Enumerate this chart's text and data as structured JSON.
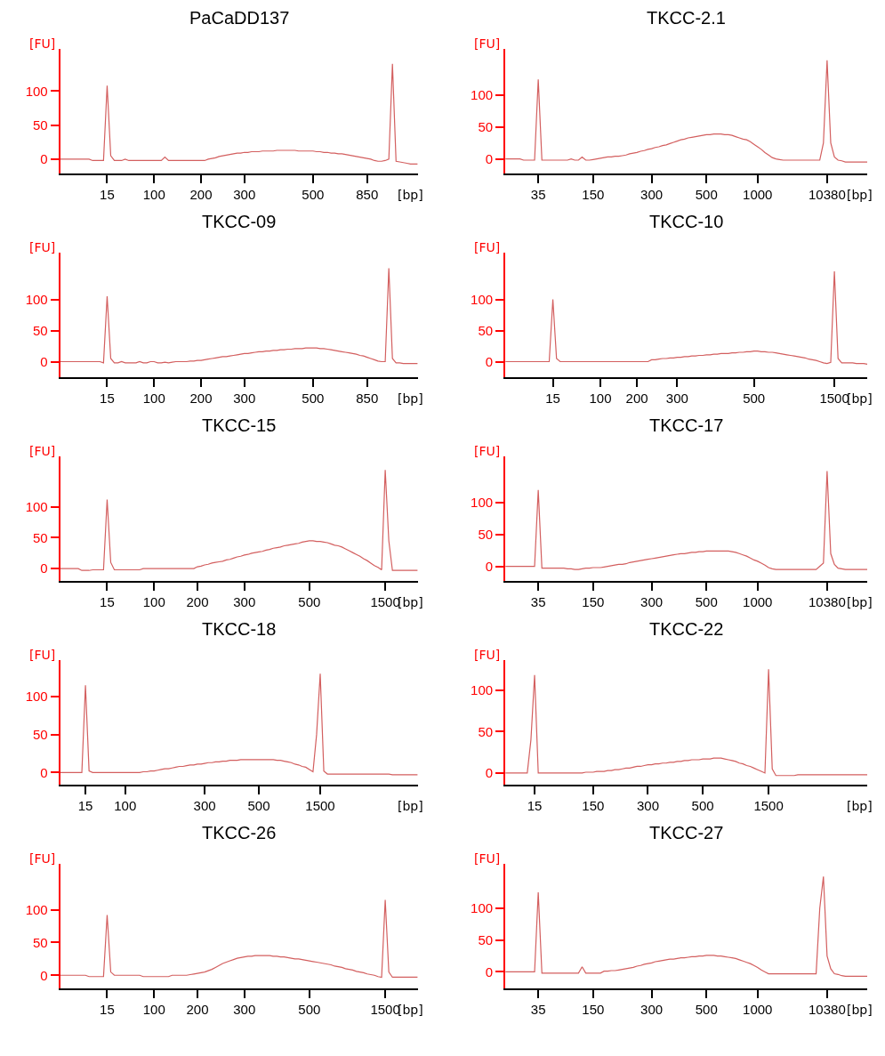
{
  "chart_data": [
    {
      "type": "line",
      "title": "PaCaDD137",
      "xlabel": "[bp]",
      "ylabel": "[FU]",
      "color": "#d35f5f",
      "marker": "none",
      "ylim": [
        -21,
        162
      ],
      "yticks": [
        0,
        50,
        100
      ],
      "categories": [
        null,
        null,
        null,
        null,
        null,
        null,
        null,
        null,
        null,
        null,
        null,
        null,
        null,
        "15",
        null,
        null,
        null,
        null,
        null,
        null,
        null,
        null,
        null,
        null,
        null,
        null,
        "100",
        null,
        null,
        null,
        null,
        null,
        null,
        null,
        null,
        null,
        null,
        null,
        null,
        "200",
        null,
        null,
        null,
        null,
        null,
        null,
        null,
        null,
        null,
        null,
        null,
        "300",
        null,
        null,
        null,
        null,
        null,
        null,
        null,
        null,
        null,
        null,
        null,
        null,
        null,
        null,
        null,
        null,
        null,
        null,
        "500",
        null,
        null,
        null,
        null,
        null,
        null,
        null,
        null,
        null,
        null,
        null,
        null,
        null,
        null,
        "850",
        null,
        null,
        null,
        null,
        null,
        null,
        null,
        null,
        null,
        null,
        null,
        null,
        null,
        null
      ],
      "values": [
        0,
        0,
        0,
        0,
        0,
        0,
        0,
        0,
        0,
        -2,
        -2,
        -2,
        -2,
        108,
        5,
        -2,
        -2,
        -2,
        0,
        -2,
        -2,
        -2,
        -2,
        -2,
        -2,
        -2,
        -2,
        -2,
        -2,
        3,
        -2,
        -2,
        -2,
        -2,
        -2,
        -2,
        -2,
        -2,
        -2,
        -2,
        -2,
        0,
        1,
        2,
        4,
        5,
        6,
        7,
        8,
        9,
        9,
        10,
        10,
        11,
        11,
        11,
        12,
        12,
        12,
        12,
        13,
        13,
        13,
        13,
        13,
        13,
        12,
        12,
        12,
        12,
        12,
        11,
        11,
        10,
        10,
        9,
        9,
        8,
        8,
        7,
        6,
        5,
        4,
        3,
        2,
        1,
        0,
        -2,
        -3,
        -3,
        -2,
        0,
        140,
        -3,
        -4,
        -5,
        -6,
        -7,
        -7,
        -7
      ]
    },
    {
      "type": "line",
      "title": "TKCC-2.1",
      "xlabel": "[bp]",
      "ylabel": "[FU]",
      "color": "#d35f5f",
      "marker": "none",
      "ylim": [
        -23,
        173
      ],
      "yticks": [
        0,
        50,
        100
      ],
      "categories": [
        null,
        null,
        null,
        null,
        null,
        null,
        null,
        null,
        null,
        "35",
        null,
        null,
        null,
        null,
        null,
        null,
        null,
        null,
        null,
        null,
        null,
        null,
        null,
        null,
        "150",
        null,
        null,
        null,
        null,
        null,
        null,
        null,
        null,
        null,
        null,
        null,
        null,
        null,
        null,
        null,
        "300",
        null,
        null,
        null,
        null,
        null,
        null,
        null,
        null,
        null,
        null,
        null,
        null,
        null,
        null,
        "500",
        null,
        null,
        null,
        null,
        null,
        null,
        null,
        null,
        null,
        null,
        null,
        null,
        null,
        "1000",
        null,
        null,
        null,
        null,
        null,
        null,
        null,
        null,
        null,
        null,
        null,
        null,
        null,
        null,
        null,
        null,
        null,
        null,
        "10380",
        null,
        null,
        null,
        null,
        null,
        null,
        null,
        null,
        null,
        null,
        null
      ],
      "values": [
        0,
        0,
        0,
        0,
        0,
        -2,
        -2,
        -2,
        -2,
        125,
        -2,
        -2,
        -2,
        -2,
        -2,
        -2,
        -2,
        -2,
        0,
        -2,
        -2,
        3,
        -2,
        -2,
        -1,
        0,
        1,
        2,
        3,
        3,
        4,
        4,
        5,
        6,
        8,
        9,
        10,
        12,
        13,
        15,
        16,
        18,
        19,
        21,
        22,
        24,
        26,
        28,
        30,
        31,
        33,
        34,
        35,
        36,
        37,
        38,
        38,
        39,
        39,
        39,
        38,
        38,
        37,
        35,
        33,
        31,
        30,
        27,
        23,
        19,
        15,
        10,
        6,
        2,
        0,
        -1,
        -2,
        -2,
        -2,
        -2,
        -2,
        -2,
        -2,
        -2,
        -2,
        -2,
        -2,
        25,
        155,
        25,
        3,
        -2,
        -3,
        -5,
        -5,
        -5,
        -5,
        -5,
        -5,
        -5
      ]
    },
    {
      "type": "line",
      "title": "TKCC-09",
      "xlabel": "[bp]",
      "ylabel": "[FU]",
      "color": "#d35f5f",
      "marker": "none",
      "ylim": [
        -25,
        175
      ],
      "yticks": [
        0,
        50,
        100
      ],
      "categories": [
        null,
        null,
        null,
        null,
        null,
        null,
        null,
        null,
        null,
        null,
        null,
        null,
        null,
        "15",
        null,
        null,
        null,
        null,
        null,
        null,
        null,
        null,
        null,
        null,
        null,
        null,
        "100",
        null,
        null,
        null,
        null,
        null,
        null,
        null,
        null,
        null,
        null,
        null,
        null,
        "200",
        null,
        null,
        null,
        null,
        null,
        null,
        null,
        null,
        null,
        null,
        null,
        "300",
        null,
        null,
        null,
        null,
        null,
        null,
        null,
        null,
        null,
        null,
        null,
        null,
        null,
        null,
        null,
        null,
        null,
        null,
        "500",
        null,
        null,
        null,
        null,
        null,
        null,
        null,
        null,
        null,
        null,
        null,
        null,
        null,
        null,
        "850",
        null,
        null,
        null,
        null,
        null,
        null,
        null,
        null,
        null,
        null,
        null,
        null,
        null,
        null
      ],
      "values": [
        0,
        0,
        0,
        0,
        0,
        0,
        0,
        0,
        0,
        0,
        0,
        0,
        -2,
        105,
        5,
        -2,
        -2,
        0,
        -2,
        -2,
        -2,
        -2,
        0,
        -2,
        -2,
        0,
        0,
        -2,
        -2,
        -1,
        -2,
        -1,
        0,
        0,
        0,
        0,
        1,
        1,
        2,
        2,
        3,
        4,
        5,
        6,
        7,
        8,
        8,
        9,
        10,
        11,
        12,
        13,
        13,
        14,
        15,
        16,
        16,
        17,
        17,
        18,
        18,
        19,
        19,
        20,
        20,
        21,
        21,
        21,
        22,
        22,
        22,
        22,
        21,
        21,
        20,
        19,
        18,
        17,
        16,
        15,
        14,
        13,
        12,
        10,
        9,
        7,
        5,
        3,
        1,
        0,
        0,
        150,
        5,
        -2,
        -2,
        -3,
        -3,
        -3,
        -3,
        -3
      ]
    },
    {
      "type": "line",
      "title": "TKCC-10",
      "xlabel": "[bp]",
      "ylabel": "[FU]",
      "color": "#d35f5f",
      "marker": "none",
      "ylim": [
        -25,
        175
      ],
      "yticks": [
        0,
        50,
        100
      ],
      "categories": [
        null,
        null,
        null,
        null,
        null,
        null,
        null,
        null,
        null,
        null,
        null,
        null,
        null,
        "15",
        null,
        null,
        null,
        null,
        null,
        null,
        null,
        null,
        null,
        null,
        null,
        null,
        "100",
        null,
        null,
        null,
        null,
        null,
        null,
        null,
        null,
        null,
        "200",
        null,
        null,
        null,
        null,
        null,
        null,
        null,
        null,
        null,
        null,
        "300",
        null,
        null,
        null,
        null,
        null,
        null,
        null,
        null,
        null,
        null,
        null,
        null,
        null,
        null,
        null,
        null,
        null,
        null,
        null,
        null,
        "500",
        null,
        null,
        null,
        null,
        null,
        null,
        null,
        null,
        null,
        null,
        null,
        null,
        null,
        null,
        null,
        null,
        null,
        null,
        null,
        null,
        null,
        "1500",
        null,
        null,
        null,
        null,
        null,
        null,
        null,
        null,
        null
      ],
      "values": [
        0,
        0,
        0,
        0,
        0,
        0,
        0,
        0,
        0,
        0,
        0,
        0,
        0,
        100,
        5,
        0,
        0,
        0,
        0,
        0,
        0,
        0,
        0,
        0,
        0,
        0,
        0,
        0,
        0,
        0,
        0,
        0,
        0,
        0,
        0,
        0,
        0,
        0,
        0,
        0,
        3,
        3,
        4,
        5,
        5,
        6,
        6,
        7,
        7,
        8,
        8,
        9,
        9,
        10,
        10,
        11,
        11,
        12,
        12,
        13,
        13,
        13,
        14,
        14,
        15,
        15,
        16,
        16,
        17,
        17,
        16,
        16,
        15,
        15,
        14,
        13,
        12,
        11,
        10,
        9,
        8,
        7,
        6,
        4,
        3,
        2,
        0,
        -2,
        -3,
        -1,
        145,
        5,
        -2,
        -2,
        -2,
        -2,
        -3,
        -3,
        -3,
        -4
      ]
    },
    {
      "type": "line",
      "title": "TKCC-15",
      "xlabel": "[bp]",
      "ylabel": "[FU]",
      "color": "#d35f5f",
      "marker": "none",
      "ylim": [
        -20,
        182
      ],
      "yticks": [
        0,
        50,
        100
      ],
      "categories": [
        null,
        null,
        null,
        null,
        null,
        null,
        null,
        null,
        null,
        null,
        null,
        null,
        null,
        "15",
        null,
        null,
        null,
        null,
        null,
        null,
        null,
        null,
        null,
        null,
        null,
        null,
        "100",
        null,
        null,
        null,
        null,
        null,
        null,
        null,
        null,
        null,
        null,
        null,
        "200",
        null,
        null,
        null,
        null,
        null,
        null,
        null,
        null,
        null,
        null,
        null,
        null,
        "300",
        null,
        null,
        null,
        null,
        null,
        null,
        null,
        null,
        null,
        null,
        null,
        null,
        null,
        null,
        null,
        null,
        null,
        "500",
        null,
        null,
        null,
        null,
        null,
        null,
        null,
        null,
        null,
        null,
        null,
        null,
        null,
        null,
        null,
        null,
        null,
        null,
        null,
        null,
        "1500",
        null,
        null,
        null,
        null,
        null,
        null,
        null,
        null,
        null
      ],
      "values": [
        0,
        0,
        0,
        0,
        0,
        0,
        -3,
        -3,
        -3,
        -2,
        -2,
        -2,
        -2,
        112,
        10,
        -2,
        -2,
        -2,
        -2,
        -2,
        -2,
        -2,
        -2,
        0,
        0,
        0,
        0,
        0,
        0,
        0,
        0,
        0,
        0,
        0,
        0,
        0,
        0,
        0,
        3,
        4,
        6,
        7,
        9,
        10,
        11,
        12,
        14,
        15,
        17,
        19,
        20,
        22,
        23,
        25,
        26,
        27,
        28,
        30,
        31,
        33,
        34,
        35,
        37,
        38,
        39,
        40,
        41,
        43,
        44,
        45,
        45,
        44,
        44,
        43,
        42,
        40,
        38,
        37,
        35,
        32,
        29,
        26,
        23,
        20,
        16,
        13,
        9,
        5,
        2,
        -2,
        160,
        45,
        -3,
        -3,
        -3,
        -3,
        -3,
        -3,
        -3,
        -3
      ]
    },
    {
      "type": "line",
      "title": "TKCC-17",
      "xlabel": "[bp]",
      "ylabel": "[FU]",
      "color": "#d35f5f",
      "marker": "none",
      "ylim": [
        -23,
        173
      ],
      "yticks": [
        0,
        50,
        100
      ],
      "categories": [
        null,
        null,
        null,
        null,
        null,
        null,
        null,
        null,
        null,
        "35",
        null,
        null,
        null,
        null,
        null,
        null,
        null,
        null,
        null,
        null,
        null,
        null,
        null,
        null,
        "150",
        null,
        null,
        null,
        null,
        null,
        null,
        null,
        null,
        null,
        null,
        null,
        null,
        null,
        null,
        null,
        "300",
        null,
        null,
        null,
        null,
        null,
        null,
        null,
        null,
        null,
        null,
        null,
        null,
        null,
        null,
        "500",
        null,
        null,
        null,
        null,
        null,
        null,
        null,
        null,
        null,
        null,
        null,
        null,
        null,
        "1000",
        null,
        null,
        null,
        null,
        null,
        null,
        null,
        null,
        null,
        null,
        null,
        null,
        null,
        null,
        null,
        null,
        null,
        null,
        "10380",
        null,
        null,
        null,
        null,
        null,
        null,
        null,
        null,
        null,
        null,
        null
      ],
      "values": [
        0,
        0,
        0,
        0,
        0,
        0,
        0,
        0,
        0,
        120,
        -3,
        -3,
        -3,
        -3,
        -3,
        -3,
        -3,
        -4,
        -4,
        -5,
        -5,
        -4,
        -3,
        -3,
        -2,
        -2,
        -2,
        -1,
        0,
        1,
        2,
        3,
        3,
        4,
        6,
        7,
        8,
        9,
        10,
        11,
        12,
        13,
        14,
        15,
        16,
        17,
        18,
        19,
        20,
        20,
        21,
        22,
        22,
        23,
        23,
        24,
        24,
        24,
        24,
        24,
        24,
        24,
        23,
        22,
        20,
        18,
        16,
        13,
        10,
        8,
        5,
        2,
        -2,
        -4,
        -5,
        -5,
        -5,
        -5,
        -5,
        -5,
        -5,
        -5,
        -5,
        -5,
        -5,
        -5,
        0,
        5,
        150,
        20,
        3,
        -3,
        -4,
        -5,
        -5,
        -5,
        -5,
        -5,
        -5,
        -5
      ]
    },
    {
      "type": "line",
      "title": "TKCC-18",
      "xlabel": "[bp]",
      "ylabel": "[FU]",
      "color": "#d35f5f",
      "marker": "none",
      "ylim": [
        -16,
        148
      ],
      "yticks": [
        0,
        50,
        100
      ],
      "categories": [
        null,
        null,
        null,
        null,
        null,
        null,
        null,
        "15",
        null,
        null,
        null,
        null,
        null,
        null,
        null,
        null,
        null,
        null,
        "100",
        null,
        null,
        null,
        null,
        null,
        null,
        null,
        null,
        null,
        null,
        null,
        null,
        null,
        null,
        null,
        null,
        null,
        null,
        null,
        null,
        null,
        "300",
        null,
        null,
        null,
        null,
        null,
        null,
        null,
        null,
        null,
        null,
        null,
        null,
        null,
        null,
        "500",
        null,
        null,
        null,
        null,
        null,
        null,
        null,
        null,
        null,
        null,
        null,
        null,
        null,
        null,
        null,
        null,
        "1500",
        null,
        null,
        null,
        null,
        null,
        null,
        null,
        null,
        null,
        null,
        null,
        null,
        null,
        null,
        null,
        null,
        null,
        null,
        null,
        null,
        null,
        null,
        null,
        null,
        null,
        null,
        null
      ],
      "values": [
        0,
        0,
        0,
        0,
        0,
        0,
        0,
        115,
        2,
        0,
        0,
        0,
        0,
        0,
        0,
        0,
        0,
        0,
        0,
        0,
        0,
        0,
        0,
        1,
        1,
        2,
        2,
        3,
        4,
        5,
        5,
        6,
        7,
        8,
        8,
        9,
        10,
        10,
        11,
        11,
        12,
        13,
        13,
        14,
        14,
        15,
        15,
        16,
        16,
        16,
        17,
        17,
        17,
        17,
        17,
        17,
        17,
        17,
        17,
        17,
        16,
        16,
        15,
        14,
        13,
        11,
        10,
        8,
        7,
        4,
        1,
        50,
        130,
        2,
        -2,
        -2,
        -2,
        -2,
        -2,
        -2,
        -2,
        -2,
        -2,
        -2,
        -2,
        -2,
        -2,
        -2,
        -2,
        -2,
        -2,
        -2,
        -3,
        -3,
        -3,
        -3,
        -3,
        -3,
        -3,
        -3
      ]
    },
    {
      "type": "line",
      "title": "TKCC-22",
      "xlabel": "[bp]",
      "ylabel": "[FU]",
      "color": "#d35f5f",
      "marker": "none",
      "ylim": [
        -14,
        136
      ],
      "yticks": [
        0,
        50,
        100
      ],
      "categories": [
        null,
        null,
        null,
        null,
        null,
        null,
        null,
        null,
        "15",
        null,
        null,
        null,
        null,
        null,
        null,
        null,
        null,
        null,
        null,
        null,
        null,
        null,
        null,
        null,
        "150",
        null,
        null,
        null,
        null,
        null,
        null,
        null,
        null,
        null,
        null,
        null,
        null,
        null,
        null,
        "300",
        null,
        null,
        null,
        null,
        null,
        null,
        null,
        null,
        null,
        null,
        null,
        null,
        null,
        null,
        "500",
        null,
        null,
        null,
        null,
        null,
        null,
        null,
        null,
        null,
        null,
        null,
        null,
        null,
        null,
        null,
        null,
        null,
        "1500",
        null,
        null,
        null,
        null,
        null,
        null,
        null,
        null,
        null,
        null,
        null,
        null,
        null,
        null,
        null,
        null,
        null,
        null,
        null,
        null,
        null,
        null,
        null,
        null,
        null,
        null,
        null
      ],
      "values": [
        0,
        0,
        0,
        0,
        0,
        0,
        0,
        40,
        118,
        0,
        0,
        0,
        0,
        0,
        0,
        0,
        0,
        0,
        0,
        0,
        0,
        0,
        1,
        1,
        1,
        2,
        2,
        2,
        3,
        3,
        4,
        4,
        5,
        6,
        6,
        7,
        8,
        8,
        9,
        10,
        10,
        11,
        11,
        12,
        12,
        13,
        13,
        14,
        14,
        15,
        15,
        16,
        16,
        16,
        17,
        17,
        17,
        18,
        18,
        18,
        17,
        16,
        15,
        14,
        12,
        11,
        9,
        8,
        6,
        4,
        2,
        0,
        125,
        5,
        -3,
        -3,
        -3,
        -3,
        -3,
        -3,
        -2,
        -2,
        -2,
        -2,
        -2,
        -2,
        -2,
        -2,
        -2,
        -2,
        -2,
        -2,
        -2,
        -2,
        -2,
        -2,
        -2,
        -2,
        -2,
        -2
      ]
    },
    {
      "type": "line",
      "title": "TKCC-26",
      "xlabel": "[bp]",
      "ylabel": "[FU]",
      "color": "#d35f5f",
      "marker": "none",
      "ylim": [
        -20,
        170
      ],
      "yticks": [
        0,
        50,
        100
      ],
      "categories": [
        null,
        null,
        null,
        null,
        null,
        null,
        null,
        null,
        null,
        null,
        null,
        null,
        null,
        "15",
        null,
        null,
        null,
        null,
        null,
        null,
        null,
        null,
        null,
        null,
        null,
        null,
        "100",
        null,
        null,
        null,
        null,
        null,
        null,
        null,
        null,
        null,
        null,
        null,
        "200",
        null,
        null,
        null,
        null,
        null,
        null,
        null,
        null,
        null,
        null,
        null,
        null,
        "300",
        null,
        null,
        null,
        null,
        null,
        null,
        null,
        null,
        null,
        null,
        null,
        null,
        null,
        null,
        null,
        null,
        null,
        "500",
        null,
        null,
        null,
        null,
        null,
        null,
        null,
        null,
        null,
        null,
        null,
        null,
        null,
        null,
        null,
        null,
        null,
        null,
        null,
        null,
        "1500",
        null,
        null,
        null,
        null,
        null,
        null,
        null,
        null,
        null
      ],
      "values": [
        0,
        0,
        0,
        0,
        0,
        0,
        0,
        0,
        -2,
        -2,
        -2,
        -2,
        -2,
        92,
        5,
        0,
        0,
        0,
        0,
        0,
        0,
        0,
        0,
        -2,
        -2,
        -2,
        -2,
        -2,
        -2,
        -2,
        -2,
        0,
        0,
        0,
        0,
        0,
        1,
        2,
        3,
        4,
        5,
        7,
        9,
        12,
        15,
        18,
        20,
        22,
        24,
        26,
        27,
        28,
        29,
        29,
        30,
        30,
        30,
        30,
        30,
        29,
        29,
        28,
        28,
        27,
        26,
        25,
        25,
        24,
        23,
        22,
        21,
        20,
        19,
        18,
        17,
        16,
        14,
        13,
        12,
        10,
        9,
        8,
        6,
        5,
        4,
        2,
        1,
        0,
        -2,
        -3,
        115,
        5,
        -3,
        -3,
        -3,
        -3,
        -3,
        -3,
        -3,
        -3
      ]
    },
    {
      "type": "line",
      "title": "TKCC-27",
      "xlabel": "[bp]",
      "ylabel": "[FU]",
      "color": "#d35f5f",
      "marker": "none",
      "ylim": [
        -26,
        170
      ],
      "yticks": [
        0,
        50,
        100
      ],
      "categories": [
        null,
        null,
        null,
        null,
        null,
        null,
        null,
        null,
        null,
        "35",
        null,
        null,
        null,
        null,
        null,
        null,
        null,
        null,
        null,
        null,
        null,
        null,
        null,
        null,
        "150",
        null,
        null,
        null,
        null,
        null,
        null,
        null,
        null,
        null,
        null,
        null,
        null,
        null,
        null,
        null,
        "300",
        null,
        null,
        null,
        null,
        null,
        null,
        null,
        null,
        null,
        null,
        null,
        null,
        null,
        null,
        "500",
        null,
        null,
        null,
        null,
        null,
        null,
        null,
        null,
        null,
        null,
        null,
        null,
        null,
        "1000",
        null,
        null,
        null,
        null,
        null,
        null,
        null,
        null,
        null,
        null,
        null,
        null,
        null,
        null,
        null,
        null,
        null,
        null,
        "10380",
        null,
        null,
        null,
        null,
        null,
        null,
        null,
        null,
        null,
        null,
        null
      ],
      "values": [
        0,
        0,
        0,
        0,
        0,
        0,
        0,
        0,
        0,
        125,
        -2,
        -2,
        -2,
        -2,
        -2,
        -2,
        -2,
        -2,
        -2,
        -2,
        -2,
        8,
        -2,
        -2,
        -2,
        -2,
        -2,
        1,
        1,
        2,
        2,
        3,
        4,
        5,
        6,
        7,
        9,
        10,
        12,
        13,
        14,
        16,
        17,
        18,
        19,
        20,
        20,
        21,
        22,
        22,
        23,
        24,
        24,
        25,
        25,
        26,
        26,
        26,
        25,
        25,
        24,
        23,
        22,
        21,
        19,
        17,
        15,
        13,
        10,
        7,
        3,
        0,
        -3,
        -3,
        -3,
        -3,
        -3,
        -3,
        -3,
        -3,
        -3,
        -3,
        -3,
        -3,
        -3,
        -3,
        100,
        150,
        25,
        5,
        -3,
        -4,
        -6,
        -7,
        -7,
        -7,
        -7,
        -7,
        -7,
        -7
      ]
    }
  ]
}
